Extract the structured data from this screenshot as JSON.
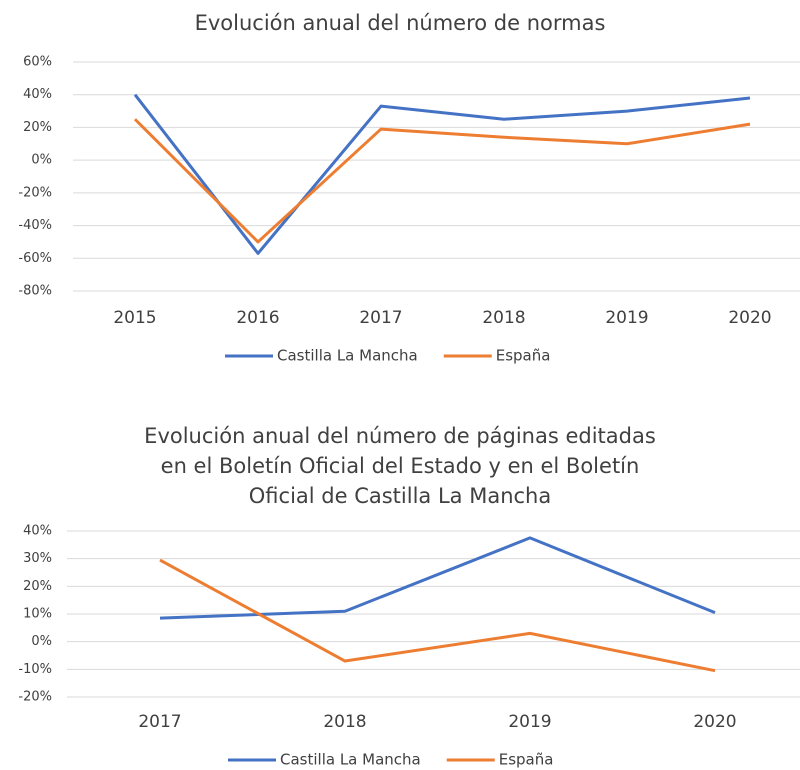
{
  "chart_data": [
    {
      "type": "line",
      "title": [
        "Evolución anual del número de normas"
      ],
      "categories": [
        "2015",
        "2016",
        "2017",
        "2018",
        "2019",
        "2020"
      ],
      "series": [
        {
          "name": "Castilla La Mancha",
          "color": "#4472c4",
          "values": [
            40,
            -57,
            33,
            25,
            30,
            38
          ]
        },
        {
          "name": "España",
          "color": "#ed7d31",
          "values": [
            25,
            -50,
            19,
            14,
            10,
            22
          ]
        }
      ],
      "ylim": [
        -80,
        60
      ],
      "yticks": [
        {
          "value": -80,
          "label": "-80%"
        },
        {
          "value": -60,
          "label": "-60%"
        },
        {
          "value": -40,
          "label": "-40%"
        },
        {
          "value": -20,
          "label": "-20%"
        },
        {
          "value": 0,
          "label": "0%"
        },
        {
          "value": 20,
          "label": "20%"
        },
        {
          "value": 40,
          "label": "40%"
        },
        {
          "value": 60,
          "label": "60%"
        }
      ],
      "grid": true
    },
    {
      "type": "line",
      "title": [
        "Evolución anual del número de páginas editadas",
        "en el Boletín Oficial del Estado y en el Boletín",
        "Oficial de Castilla La Mancha"
      ],
      "categories": [
        "2017",
        "2018",
        "2019",
        "2020"
      ],
      "series": [
        {
          "name": "Castilla La Mancha",
          "color": "#4472c4",
          "values": [
            8.5,
            11,
            37.5,
            10.5
          ]
        },
        {
          "name": "España",
          "color": "#ed7d31",
          "values": [
            29.5,
            -7,
            3,
            -10.5
          ]
        }
      ],
      "ylim": [
        -20,
        40
      ],
      "yticks": [
        {
          "value": -20,
          "label": "-20%"
        },
        {
          "value": -10,
          "label": "-10%"
        },
        {
          "value": 0,
          "label": "0%"
        },
        {
          "value": 10,
          "label": "10%"
        },
        {
          "value": 20,
          "label": "20%"
        },
        {
          "value": 30,
          "label": "30%"
        },
        {
          "value": 40,
          "label": "40%"
        }
      ],
      "grid": true
    }
  ]
}
